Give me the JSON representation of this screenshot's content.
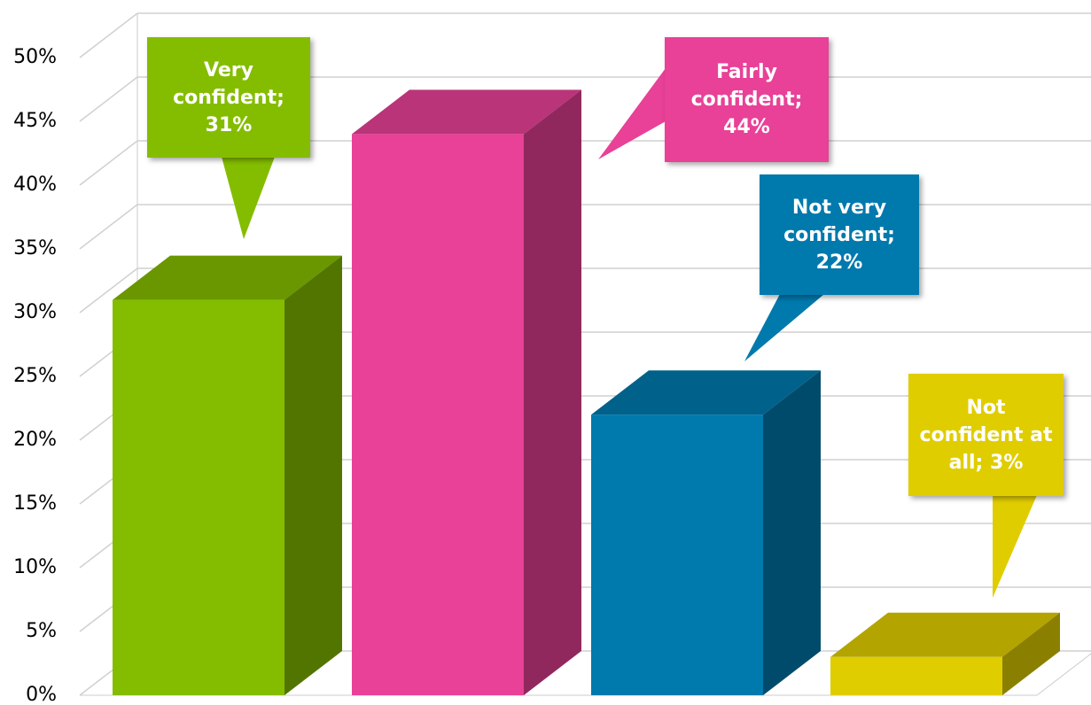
{
  "chart_data": {
    "type": "bar3d",
    "values": [
      31,
      44,
      22,
      3
    ],
    "value_labels": [
      "Very confident; 31%",
      "Fairly confident; 44%",
      "Not very confident; 22%",
      "Not confident at all; 3%"
    ],
    "colors": [
      "#84bd00",
      "#e84197",
      "#0079ad",
      "#e0cd00"
    ],
    "ylim": [
      0,
      50
    ],
    "yticks": [
      {
        "value": 0,
        "label": "0%"
      },
      {
        "value": 5,
        "label": "5%"
      },
      {
        "value": 10,
        "label": "10%"
      },
      {
        "value": 15,
        "label": "15%"
      },
      {
        "value": 20,
        "label": "20%"
      },
      {
        "value": 25,
        "label": "25%"
      },
      {
        "value": 30,
        "label": "30%"
      },
      {
        "value": 35,
        "label": "35%"
      },
      {
        "value": 40,
        "label": "40%"
      },
      {
        "value": 45,
        "label": "45%"
      },
      {
        "value": 50,
        "label": "50%"
      }
    ],
    "grid": true
  }
}
